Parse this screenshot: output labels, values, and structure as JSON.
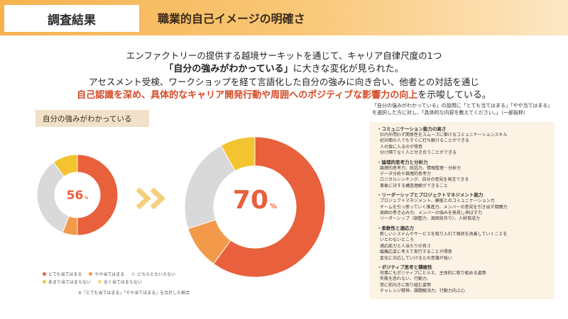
{
  "header": {
    "tag": "調査結果",
    "title": "職業的自己イメージの明確さ"
  },
  "intro": {
    "line1": "エンファクトリーの提供する越境サーキットを通じて、キャリア自律尺度の1つ",
    "line2_bold": "「自分の強みがわかっている」",
    "line2_rest": "に大きな変化が見られた。",
    "line3": "アセスメント受検、ワークショップを経て言語化した自分の強みに向き合い、他者との対話を通じ",
    "line4_highlight": "自己認識を深め、具体的なキャリア開発行動や周囲へのポジティブな影響力の向上",
    "line4_rest": "を示唆している。"
  },
  "left_label": "自分の強みがわかっている",
  "colors": {
    "orange": "#e8603c",
    "orange_light": "#f29a4a",
    "gray": "#d9d9d9",
    "gray_dark": "#bfbfbf",
    "yellow": "#f4c430",
    "yellow_light": "#f7da7a",
    "arrow": "#f4d07a"
  },
  "chart_data": [
    {
      "type": "pie",
      "title": "",
      "center_label": "56",
      "center_unit": "%",
      "slices": [
        {
          "name": "とても当てはまる",
          "value": 50
        },
        {
          "name": "やや当てはまる",
          "value": 6
        },
        {
          "name": "どちらともいえない",
          "value": 34
        },
        {
          "name": "あまり当てはまらない",
          "value": 10
        },
        {
          "name": "全く当てはまらない",
          "value": 0
        }
      ]
    },
    {
      "type": "pie",
      "title": "",
      "center_label": "70",
      "center_unit": "%",
      "slices": [
        {
          "name": "とても当てはまる",
          "value": 60
        },
        {
          "name": "やや当てはまる",
          "value": 10
        },
        {
          "name": "どちらともいえない",
          "value": 22
        },
        {
          "name": "あまり当てはまらない",
          "value": 8
        },
        {
          "name": "全く当てはまらない",
          "value": 0
        }
      ]
    }
  ],
  "legend": [
    {
      "label": "とても当てはまる",
      "color": "#e8603c"
    },
    {
      "label": "やや当てはまる",
      "color": "#f29a4a"
    },
    {
      "label": "どちらともいえない",
      "color": "#d9d9d9"
    },
    {
      "label": "あまり当てはまらない",
      "color": "#f4c430"
    },
    {
      "label": "全く当てはまらない",
      "color": "#f7da7a"
    }
  ],
  "legend_note": "※「とても当てはまる」「やや当てはまる」を合計した割合",
  "question_text": "「自分の強みがわかっている」の設問に「とても当てはまる」「やや当てはまる」を選択した方に対し、「具体的な内容を教えてください。」（一部抜粋）",
  "categories": [
    {
      "title": "・コミュニケーション能力の高さ",
      "items": [
        "社内外問わず関係性をスムーズに築けるコミュニケーションスキル",
        "初対面の人でもすぐに打ち解けることができる",
        "人の懐に入るのが得意",
        "分け隔てなく人と付き合うことができる"
      ]
    },
    {
      "title": "・論理的思考力と分析力",
      "items": [
        "論理的思考力、統括力、情報整理・分析力",
        "データ分析や論理的思考力",
        "ロジカルシンキング、自分の意見を発言できる",
        "事象に対する構造理解ができること"
      ]
    },
    {
      "title": "・リーダーシップとプロジェクトマネジメント能力",
      "items": [
        "プロジェクトマネジメント、顧客とのコミュニケーション力",
        "チームを引っ張っていく推進力、メンバーの意見を引き出す傾聴力",
        "周囲の巻き込み力、メンバーの強みを発見し伸ばす力",
        "リーダーシップ（調整力、周囲気作り）、人財育成力"
      ]
    },
    {
      "title": "・柔軟性と適応力",
      "items": [
        "新しいシステムやサービスを取り入れて現状を改善していくことを",
        "いとわないところ",
        "適応能力と人当たりの良さ",
        "臨機応変に考えて実行することが得意",
        "変化に対応していけるとの意識が強い"
      ]
    },
    {
      "title": "・ポジティブ思考と積極性",
      "items": [
        "何事にもポジティブにとらえ、主体的に取り組める姿勢",
        "失敗を恐れない、行動力、",
        "常に前向きに取り組む姿勢",
        "チャレンジ精神、課題解決力、行動力向上心"
      ]
    }
  ]
}
